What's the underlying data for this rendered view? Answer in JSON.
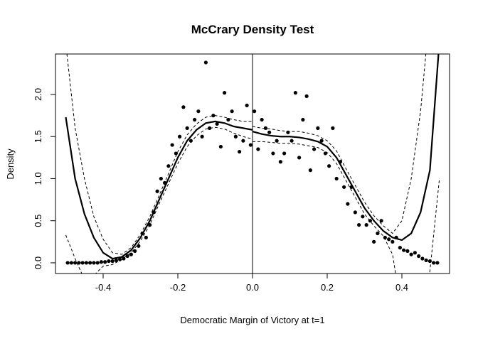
{
  "chart_data": {
    "type": "scatter",
    "title": "McCrary Density Test",
    "xlabel": "Democratic Margin of Victory at t=1",
    "ylabel": "Density",
    "xlim": [
      -0.5276,
      0.5276
    ],
    "ylim": [
      -0.127,
      2.481
    ],
    "xticks": [
      -0.4,
      -0.2,
      {
        "value": 0,
        "label": "0.0"
      },
      0.2,
      0.4
    ],
    "yticks": [
      {
        "value": 0,
        "label": "0.0"
      },
      0.5,
      {
        "value": 1,
        "label": "1.0"
      },
      1.5,
      {
        "value": 2,
        "label": "2.0"
      }
    ],
    "cutoff": 0,
    "points": {
      "x": [
        -0.495,
        -0.485,
        -0.475,
        -0.465,
        -0.455,
        -0.445,
        -0.435,
        -0.425,
        -0.415,
        -0.405,
        -0.395,
        -0.385,
        -0.375,
        -0.365,
        -0.355,
        -0.345,
        -0.335,
        -0.325,
        -0.315,
        -0.305,
        -0.295,
        -0.285,
        -0.275,
        -0.265,
        -0.255,
        -0.245,
        -0.235,
        -0.225,
        -0.215,
        -0.205,
        -0.195,
        -0.185,
        -0.175,
        -0.165,
        -0.155,
        -0.145,
        -0.135,
        -0.125,
        -0.115,
        -0.105,
        -0.095,
        -0.085,
        -0.075,
        -0.065,
        -0.055,
        -0.045,
        -0.035,
        -0.025,
        -0.015,
        -0.005,
        0.005,
        0.015,
        0.025,
        0.035,
        0.045,
        0.055,
        0.065,
        0.075,
        0.085,
        0.095,
        0.105,
        0.115,
        0.125,
        0.135,
        0.145,
        0.155,
        0.165,
        0.175,
        0.185,
        0.195,
        0.205,
        0.215,
        0.225,
        0.235,
        0.245,
        0.255,
        0.265,
        0.275,
        0.285,
        0.295,
        0.305,
        0.315,
        0.325,
        0.335,
        0.345,
        0.355,
        0.365,
        0.375,
        0.385,
        0.395,
        0.405,
        0.415,
        0.425,
        0.435,
        0.445,
        0.455,
        0.465,
        0.475,
        0.485,
        0.495
      ],
      "y": [
        0,
        0,
        0,
        0,
        0,
        0,
        0,
        0,
        0,
        0.01,
        0.01,
        0.02,
        0.02,
        0.03,
        0.04,
        0.05,
        0.08,
        0.1,
        0.14,
        0.2,
        0.35,
        0.3,
        0.45,
        0.6,
        0.85,
        1.0,
        0.95,
        1.15,
        1.4,
        1.3,
        1.5,
        1.85,
        1.6,
        1.45,
        1.7,
        1.8,
        1.5,
        2.38,
        1.6,
        1.75,
        1.65,
        1.38,
        2.02,
        1.7,
        1.8,
        1.5,
        1.32,
        1.45,
        1.87,
        1.4,
        1.8,
        1.35,
        1.7,
        1.6,
        1.55,
        1.3,
        1.45,
        1.2,
        1.3,
        1.55,
        1.45,
        2.02,
        1.25,
        1.7,
        1.98,
        1.1,
        1.35,
        1.6,
        1.45,
        1.3,
        1.15,
        1.6,
        1.0,
        1.2,
        0.9,
        0.7,
        0.9,
        0.6,
        0.45,
        0.55,
        0.45,
        0.5,
        0.25,
        0.35,
        0.5,
        0.3,
        0.28,
        0.25,
        0.3,
        0.18,
        0.15,
        0.14,
        0.1,
        0.12,
        0.08,
        0.05,
        0.03,
        0.02,
        0,
        0
      ]
    },
    "fits": [
      {
        "x": [
          -0.5,
          -0.475,
          -0.45,
          -0.425,
          -0.4,
          -0.375,
          -0.35,
          -0.325,
          -0.3,
          -0.275,
          -0.25,
          -0.225,
          -0.2,
          -0.175,
          -0.15,
          -0.125,
          -0.1,
          -0.075,
          -0.05,
          -0.025,
          0
        ],
        "fit": [
          1.73,
          1.0,
          0.58,
          0.3,
          0.12,
          0.05,
          0.07,
          0.15,
          0.3,
          0.5,
          0.75,
          1.0,
          1.25,
          1.45,
          1.58,
          1.66,
          1.68,
          1.66,
          1.62,
          1.6,
          1.58
        ],
        "upper": [
          2.6,
          1.6,
          1.0,
          0.55,
          0.28,
          0.12,
          0.1,
          0.18,
          0.34,
          0.55,
          0.8,
          1.06,
          1.32,
          1.52,
          1.65,
          1.73,
          1.75,
          1.73,
          1.7,
          1.68,
          1.68
        ],
        "lower": [
          0.33,
          0.05,
          -0.2,
          -0.15,
          -0.04,
          -0.02,
          0.04,
          0.12,
          0.26,
          0.45,
          0.7,
          0.94,
          1.18,
          1.38,
          1.51,
          1.59,
          1.61,
          1.59,
          1.54,
          1.5,
          1.47
        ]
      },
      {
        "x": [
          0,
          0.025,
          0.05,
          0.075,
          0.1,
          0.125,
          0.15,
          0.175,
          0.2,
          0.225,
          0.25,
          0.275,
          0.3,
          0.325,
          0.35,
          0.375,
          0.4,
          0.425,
          0.45,
          0.475,
          0.5
        ],
        "fit": [
          1.56,
          1.53,
          1.51,
          1.5,
          1.5,
          1.49,
          1.47,
          1.44,
          1.38,
          1.25,
          1.05,
          0.85,
          0.65,
          0.5,
          0.38,
          0.3,
          0.27,
          0.35,
          0.6,
          1.1,
          2.6
        ],
        "upper": [
          1.62,
          1.6,
          1.59,
          1.57,
          1.56,
          1.56,
          1.54,
          1.51,
          1.45,
          1.33,
          1.12,
          0.92,
          0.72,
          0.56,
          0.44,
          0.35,
          0.5,
          1.0,
          1.8,
          3.0,
          3.5
        ],
        "lower": [
          1.44,
          1.44,
          1.43,
          1.42,
          1.42,
          1.41,
          1.39,
          1.37,
          1.31,
          1.18,
          0.98,
          0.78,
          0.58,
          0.44,
          0.32,
          0.1,
          -0.6,
          -0.8,
          -0.6,
          -0.1,
          0.98
        ]
      }
    ]
  }
}
